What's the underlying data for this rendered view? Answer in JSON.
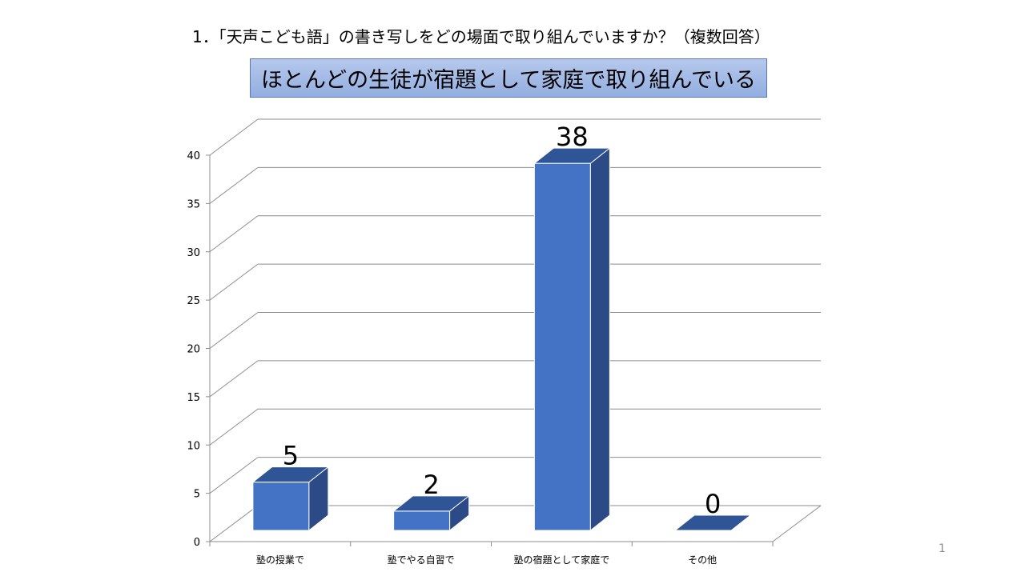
{
  "question": "1．「天声こども語」の書き写しをどの場面で取り組んでいますか？（複数回答）",
  "callout": "ほとんどの生徒が宿題として家庭で取り組んでいる",
  "page_number": "1",
  "colors": {
    "bar_front": "#4472c4",
    "bar_top": "#2f5597",
    "bar_side": "#2b4a86",
    "grid": "#8c8c8c",
    "callout_border": "#5b78b8"
  },
  "chart_data": {
    "type": "bar",
    "categories": [
      "塾の授業で",
      "塾でやる自習で",
      "塾の宿題として家庭で",
      "その他"
    ],
    "values": [
      5,
      2,
      38,
      0
    ],
    "data_labels": [
      "5",
      "2",
      "38",
      "0"
    ],
    "ylim": [
      0,
      40
    ],
    "yticks": [
      "0",
      "5",
      "10",
      "15",
      "20",
      "25",
      "30",
      "35",
      "40"
    ],
    "grid": true,
    "three_d": true
  }
}
